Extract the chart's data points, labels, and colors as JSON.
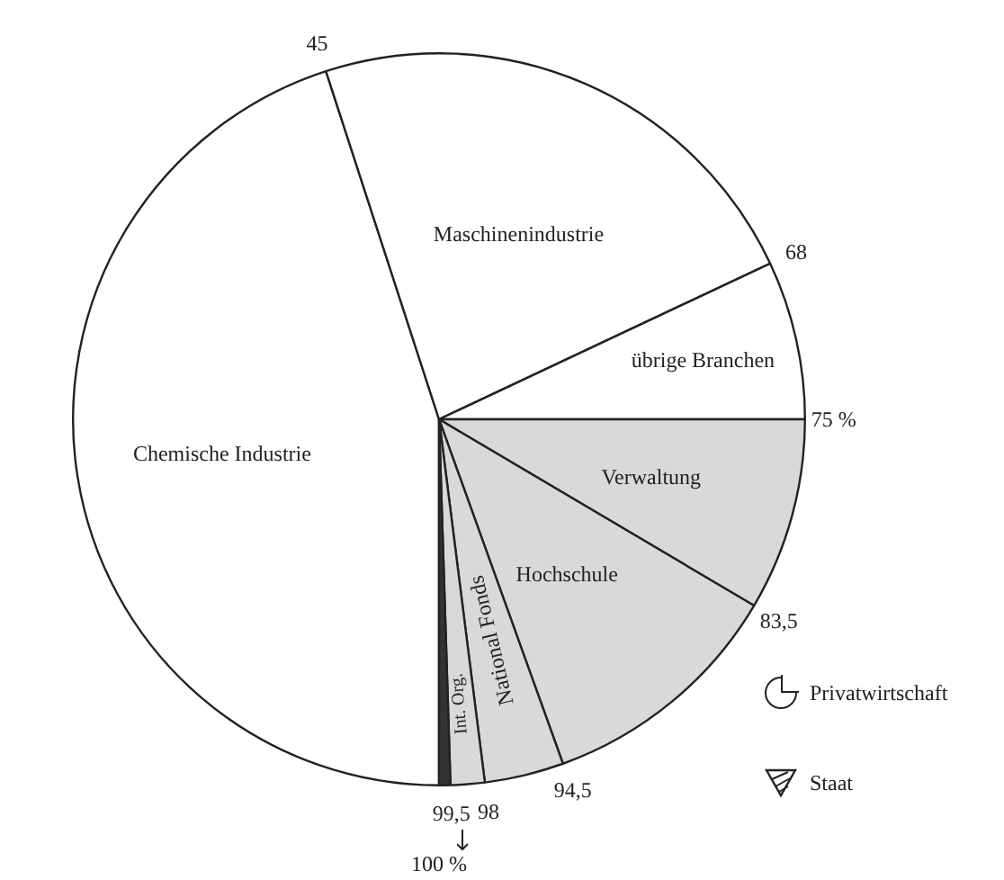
{
  "chart_data": {
    "type": "pie",
    "categories": [
      "Chemische Industrie",
      "Maschinenindustrie",
      "übrige Branchen",
      "Verwaltung",
      "Hochschule",
      "National Fonds",
      "Int. Org.",
      null
    ],
    "values": [
      45,
      23,
      7,
      8.5,
      11,
      3.5,
      1.5,
      0.5
    ],
    "colors": [
      "#ffffff",
      "#ffffff",
      "#ffffff",
      "#d9d9d9",
      "#d9d9d9",
      "#d9d9d9",
      "#d9d9d9",
      "#333333"
    ],
    "annotations": [
      "45",
      "68",
      "75 %",
      "83,5",
      "94,5",
      "98",
      "99,5",
      "100 %",
      "Privatwirtschaft",
      "Staat"
    ],
    "legend": false
  }
}
